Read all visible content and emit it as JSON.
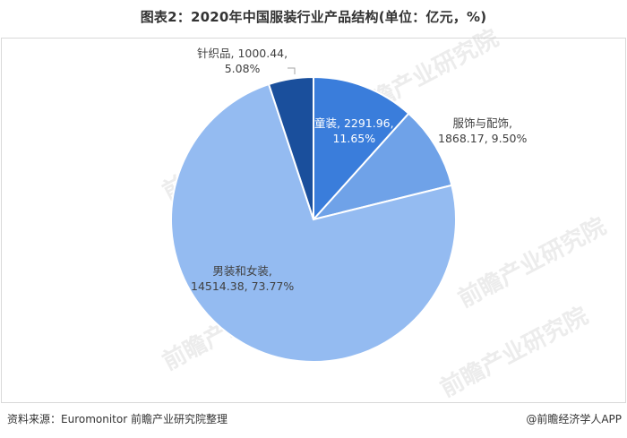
{
  "title": "图表2：2020年中国服装行业产品结构(单位：亿元，%)",
  "chart_data": {
    "type": "pie",
    "title": "2020年中国服装行业产品结构(单位：亿元，%)",
    "unit": "亿元",
    "start_angle_deg": 0,
    "direction": "clockwise",
    "slices": [
      {
        "name": "童装",
        "value": 2291.96,
        "percent": 11.65,
        "color": "#3a7ddb",
        "label": "童装, 2291.96,",
        "label2": "11.65%"
      },
      {
        "name": "服饰与配饰",
        "value": 1868.17,
        "percent": 9.5,
        "color": "#6fa2e8",
        "label": "服饰与配饰,",
        "label2": "1868.17, 9.50%"
      },
      {
        "name": "男装和女装",
        "value": 14514.38,
        "percent": 73.77,
        "color": "#94bbf1",
        "label": "男装和女装,",
        "label2": "14514.38, 73.77%"
      },
      {
        "name": "针织品",
        "value": 1000.44,
        "percent": 5.08,
        "color": "#1a4f9c",
        "label": "针织品, 1000.44,",
        "label2": "5.08%"
      }
    ],
    "legend": "none"
  },
  "footer": {
    "source": "资料来源：Euromonitor 前瞻产业研究院整理",
    "credit": "@前瞻经济学人APP"
  },
  "watermark": "前瞻产业研究院"
}
